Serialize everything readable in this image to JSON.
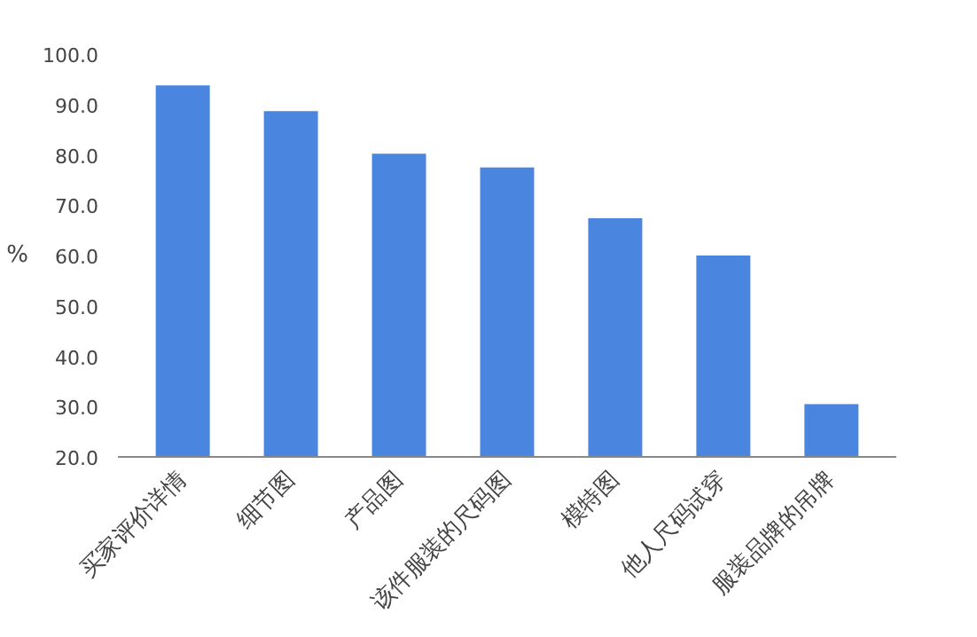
{
  "chart_data": {
    "type": "bar",
    "ylabel": "%",
    "categories": [
      "买家评价详情",
      "细节图",
      "产品图",
      "该件服装的尺码图",
      "模特图",
      "他人尺码试穿",
      "服装品牌的吊牌"
    ],
    "values": [
      93.8,
      88.7,
      80.2,
      77.5,
      67.4,
      60.0,
      30.5
    ],
    "color": "#4a86e0",
    "ylim": [
      20,
      100
    ],
    "yticks": [
      {
        "value": 20,
        "label": "20.0"
      },
      {
        "value": 30,
        "label": "30.0"
      },
      {
        "value": 40,
        "label": "40.0"
      },
      {
        "value": 50,
        "label": "50.0"
      },
      {
        "value": 60,
        "label": "60.0"
      },
      {
        "value": 70,
        "label": "70.0"
      },
      {
        "value": 80,
        "label": "80.0"
      },
      {
        "value": 90,
        "label": "90.0"
      },
      {
        "value": 100,
        "label": "100.0"
      }
    ],
    "grid": false
  }
}
